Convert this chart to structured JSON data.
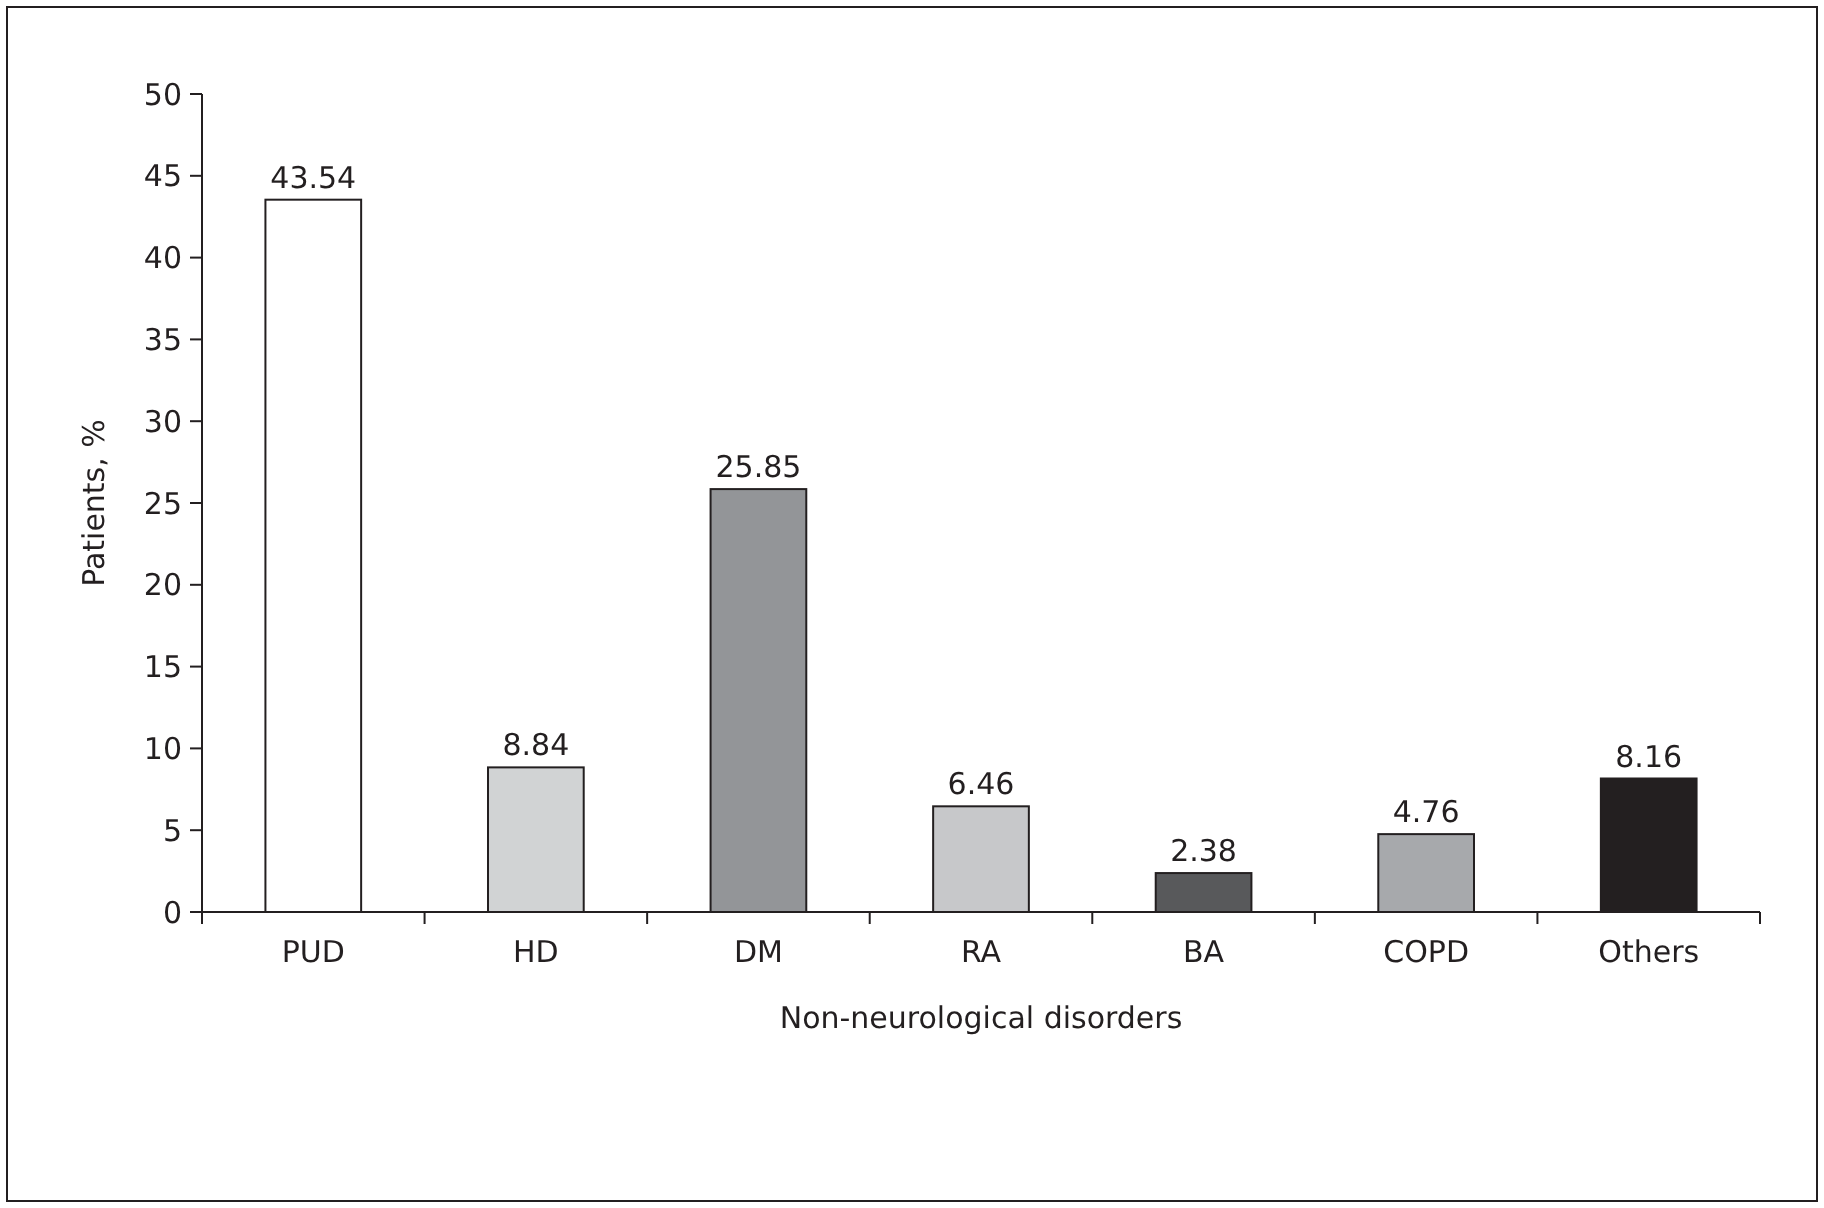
{
  "chart_data": {
    "type": "bar",
    "xlabel": "Non-neurological disorders",
    "ylabel": "Patients, %",
    "categories": [
      "PUD",
      "HD",
      "DM",
      "RA",
      "BA",
      "COPD",
      "Others"
    ],
    "values": [
      43.54,
      8.84,
      25.85,
      6.46,
      2.38,
      4.76,
      8.16
    ],
    "colors": [
      "#ffffff",
      "#d1d3d4",
      "#939598",
      "#c7c8ca",
      "#58595b",
      "#a7a9ac",
      "#231f20"
    ],
    "ylim": [
      0,
      50
    ],
    "yticks": [
      0,
      5,
      10,
      15,
      20,
      25,
      30,
      35,
      40,
      45,
      50
    ],
    "data_labels": true,
    "grid": false
  }
}
